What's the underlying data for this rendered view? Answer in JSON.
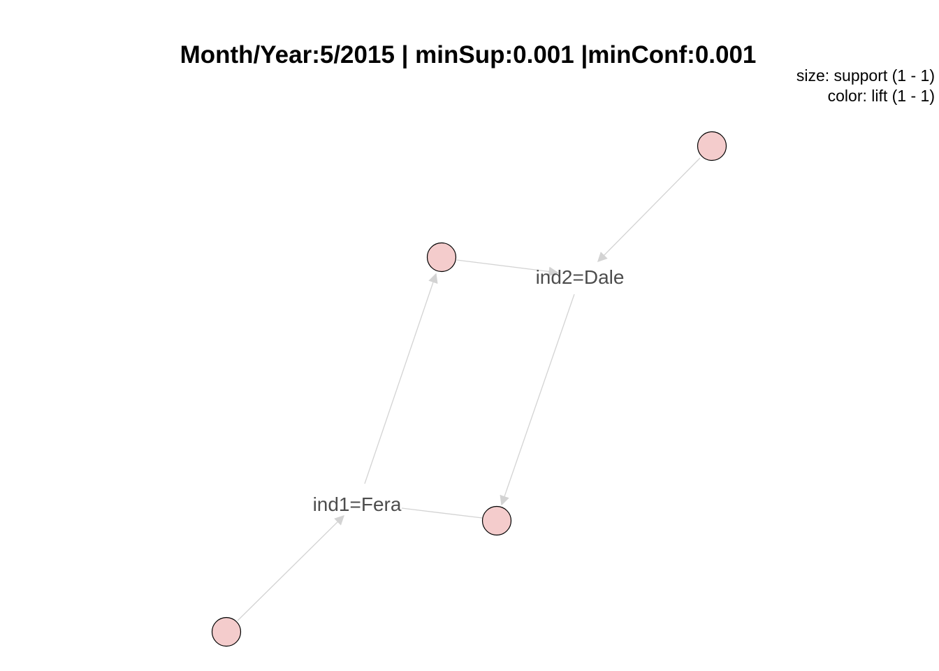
{
  "title": "Month/Year:5/2015 | minSup:0.001 |minConf:0.001",
  "legend": {
    "size_text": "size: support (1 - 1)",
    "color_text": "color: lift (1 - 1)"
  },
  "colors": {
    "rule_fill": "#f4cccc",
    "edge": "#d3d3d3",
    "label": "#4d4d4d"
  },
  "items": [
    {
      "id": "item-ind2",
      "label": "ind2=Dale"
    },
    {
      "id": "item-ind1",
      "label": "ind1=Fera"
    }
  ],
  "rules": [
    {
      "id": "rule-top-right"
    },
    {
      "id": "rule-upper-middle"
    },
    {
      "id": "rule-lower-middle"
    },
    {
      "id": "rule-bottom-left"
    }
  ],
  "edges": [
    {
      "from": "rule-top-right",
      "to": "item-ind2"
    },
    {
      "from": "rule-upper-middle",
      "to": "item-ind2"
    },
    {
      "from": "item-ind2",
      "to": "rule-lower-middle"
    },
    {
      "from": "rule-bottom-left",
      "to": "item-ind1"
    },
    {
      "from": "item-ind1",
      "to": "rule-upper-middle"
    },
    {
      "from": "item-ind1",
      "to": "rule-lower-middle"
    }
  ]
}
